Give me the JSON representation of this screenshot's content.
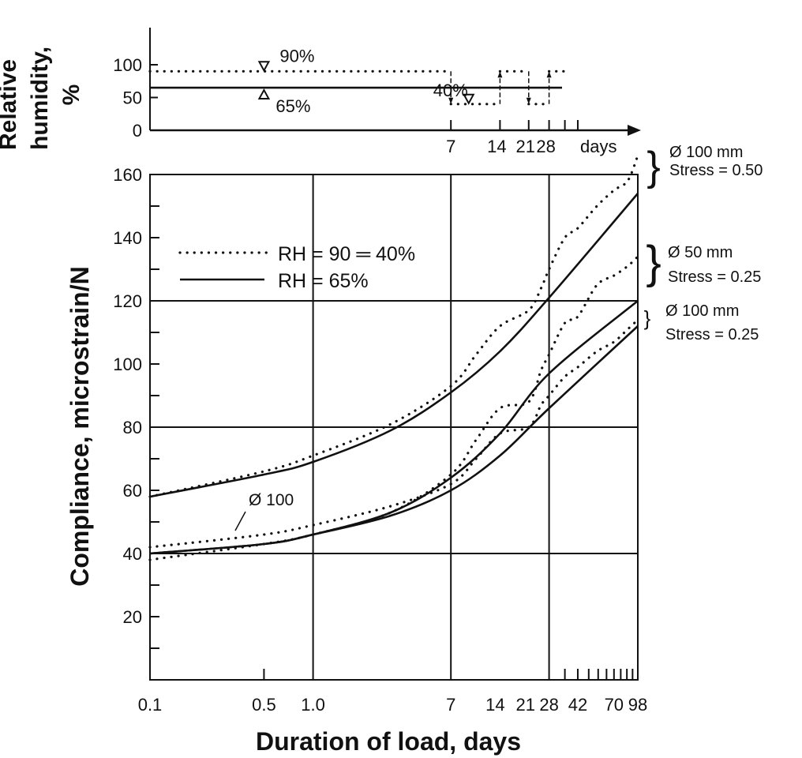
{
  "chart_data": [
    {
      "type": "line",
      "title": "",
      "xlabel": "",
      "ylabel": "Relative humidity, %",
      "ylabel_lines": [
        "Relative",
        "humidity,",
        "%"
      ],
      "xscale": "log",
      "ylim": [
        0,
        100
      ],
      "yticks": [
        "0",
        "50",
        "100"
      ],
      "ytick_values": [
        0,
        50,
        100
      ],
      "xticks": [
        "7",
        "14",
        "21",
        "28"
      ],
      "xtick_values": [
        7,
        14,
        21,
        28
      ],
      "extra_xtick_values": [
        35,
        42
      ],
      "x_unit_label": "days",
      "series": [
        {
          "name": "RH = 65%",
          "style": "solid",
          "x": [
            0.1,
            98
          ],
          "y": [
            65,
            65
          ]
        },
        {
          "name": "RH = 90 / 40%",
          "style": "dotted",
          "segments": [
            {
              "x": [
                0.1,
                7
              ],
              "y": 90
            },
            {
              "x": [
                7,
                14
              ],
              "y": 40
            },
            {
              "x": [
                14,
                21
              ],
              "y": 90
            },
            {
              "x": [
                21,
                28
              ],
              "y": 40
            },
            {
              "x": [
                28,
                35
              ],
              "y": 90
            }
          ]
        }
      ],
      "arrows": [
        {
          "x": 7,
          "direction": "down"
        },
        {
          "x": 14,
          "direction": "up"
        },
        {
          "x": 21,
          "direction": "down"
        },
        {
          "x": 28,
          "direction": "up"
        }
      ],
      "annotations": [
        {
          "text": "90%",
          "x": 0.5,
          "y": 90,
          "marker": "triangle-down"
        },
        {
          "text": "65%",
          "x": 0.5,
          "y": 65,
          "marker": "triangle-up"
        },
        {
          "text": "40%",
          "x": 9,
          "y": 40,
          "marker": "triangle-down"
        }
      ]
    },
    {
      "type": "line",
      "title": "",
      "xlabel": "Duration of load, days",
      "ylabel": "Compliance, microstrain/N",
      "xscale": "log",
      "xlim": [
        0.1,
        98
      ],
      "ylim": [
        0,
        160
      ],
      "grid": {
        "x": [
          1,
          7,
          28
        ],
        "y": [
          40,
          80,
          120
        ]
      },
      "xticks": [
        "0.1",
        "0.5",
        "1.0",
        "7",
        "14",
        "21",
        "28",
        "42",
        "70",
        "98"
      ],
      "xtick_values": [
        0.1,
        0.5,
        1,
        7,
        14,
        21,
        28,
        42,
        70,
        98
      ],
      "yticks": [
        "20",
        "40",
        "60",
        "80",
        "100",
        "120",
        "140",
        "160"
      ],
      "ytick_values": [
        20,
        40,
        60,
        80,
        100,
        120,
        140,
        160
      ],
      "legend": {
        "placement": "upper-left",
        "entries": [
          {
            "label": "RH = 90 ═ 40%",
            "style": "dotted"
          },
          {
            "label": "RH = 65%",
            "style": "solid"
          }
        ]
      },
      "groups": [
        {
          "label": [
            "Ø 100 mm",
            "Stress = 0.50"
          ],
          "series": [
            {
              "name": "RH = 65%",
              "style": "solid",
              "x": [
                0.1,
                0.5,
                1,
                3,
                7,
                14,
                28,
                98
              ],
              "y": [
                58,
                65,
                69,
                79,
                91,
                104,
                121,
                154
              ]
            },
            {
              "name": "RH = 90 ═ 40%",
              "style": "dotted",
              "x": [
                0.1,
                0.5,
                1,
                3,
                7,
                10,
                14,
                21,
                25,
                28,
                35,
                42,
                55,
                70,
                85,
                98
              ],
              "y": [
                58,
                66,
                71,
                81,
                93,
                103,
                112,
                117,
                124,
                130,
                140,
                143,
                150,
                155,
                158,
                166
              ]
            }
          ]
        },
        {
          "label": [
            "Ø 50 mm",
            "Stress = 0.25"
          ],
          "series": [
            {
              "name": "RH = 65%",
              "style": "solid",
              "x": [
                0.1,
                0.5,
                1,
                3,
                7,
                14,
                28,
                98
              ],
              "y": [
                40,
                43,
                46,
                53,
                64,
                78,
                97,
                120
              ]
            },
            {
              "name": "RH = 90 ═ 40%",
              "style": "dotted",
              "x": [
                0.1,
                0.5,
                1,
                3,
                7,
                10,
                14,
                21,
                25,
                28,
                35,
                42,
                55,
                70,
                85,
                98
              ],
              "y": [
                38,
                43,
                46,
                53,
                65,
                76,
                86,
                88,
                98,
                103,
                113,
                115,
                125,
                128,
                131,
                134
              ]
            }
          ]
        },
        {
          "label": [
            "Ø 100 mm",
            "Stress = 0.25"
          ],
          "series": [
            {
              "name": "RH = 65%",
              "style": "solid",
              "x": [
                0.1,
                0.5,
                1,
                3,
                7,
                14,
                28,
                98
              ],
              "y": [
                40,
                43,
                46,
                52,
                60,
                71,
                86,
                112
              ]
            },
            {
              "name": "RH = 90 ═ 40%",
              "style": "dotted",
              "x": [
                0.1,
                0.5,
                1,
                3,
                7,
                10,
                14,
                21,
                25,
                28,
                35,
                42,
                55,
                70,
                85,
                98
              ],
              "y": [
                42,
                46,
                49,
                55,
                62,
                70,
                78,
                80,
                87,
                90,
                96,
                99,
                104,
                107,
                111,
                114
              ]
            }
          ]
        }
      ],
      "annotations": [
        {
          "text": "Ø 100"
        }
      ]
    }
  ]
}
